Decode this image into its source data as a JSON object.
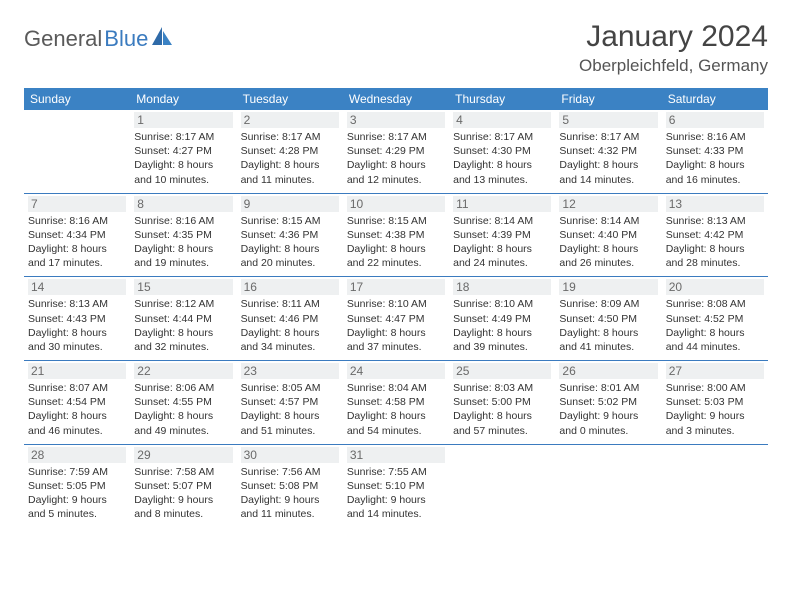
{
  "logo": {
    "text1": "General",
    "text2": "Blue"
  },
  "title": "January 2024",
  "location": "Oberpleichfeld, Germany",
  "style": {
    "header_bg": "#3b82c4",
    "header_fg": "#ffffff",
    "daynum_bg": "#eef0f1",
    "daynum_fg": "#6a6a6a",
    "border_color": "#3b7bbf",
    "text_color": "#333333",
    "page_bg": "#ffffff",
    "logo_gray": "#5a5a5a",
    "logo_blue": "#3b7bbf",
    "title_fontsize": 30,
    "location_fontsize": 17,
    "dayhead_fontsize": 12,
    "info_fontsize": 10.5
  },
  "day_names": [
    "Sunday",
    "Monday",
    "Tuesday",
    "Wednesday",
    "Thursday",
    "Friday",
    "Saturday"
  ],
  "weeks": [
    [
      null,
      {
        "n": "1",
        "sr": "Sunrise: 8:17 AM",
        "ss": "Sunset: 4:27 PM",
        "dl": "Daylight: 8 hours and 10 minutes."
      },
      {
        "n": "2",
        "sr": "Sunrise: 8:17 AM",
        "ss": "Sunset: 4:28 PM",
        "dl": "Daylight: 8 hours and 11 minutes."
      },
      {
        "n": "3",
        "sr": "Sunrise: 8:17 AM",
        "ss": "Sunset: 4:29 PM",
        "dl": "Daylight: 8 hours and 12 minutes."
      },
      {
        "n": "4",
        "sr": "Sunrise: 8:17 AM",
        "ss": "Sunset: 4:30 PM",
        "dl": "Daylight: 8 hours and 13 minutes."
      },
      {
        "n": "5",
        "sr": "Sunrise: 8:17 AM",
        "ss": "Sunset: 4:32 PM",
        "dl": "Daylight: 8 hours and 14 minutes."
      },
      {
        "n": "6",
        "sr": "Sunrise: 8:16 AM",
        "ss": "Sunset: 4:33 PM",
        "dl": "Daylight: 8 hours and 16 minutes."
      }
    ],
    [
      {
        "n": "7",
        "sr": "Sunrise: 8:16 AM",
        "ss": "Sunset: 4:34 PM",
        "dl": "Daylight: 8 hours and 17 minutes."
      },
      {
        "n": "8",
        "sr": "Sunrise: 8:16 AM",
        "ss": "Sunset: 4:35 PM",
        "dl": "Daylight: 8 hours and 19 minutes."
      },
      {
        "n": "9",
        "sr": "Sunrise: 8:15 AM",
        "ss": "Sunset: 4:36 PM",
        "dl": "Daylight: 8 hours and 20 minutes."
      },
      {
        "n": "10",
        "sr": "Sunrise: 8:15 AM",
        "ss": "Sunset: 4:38 PM",
        "dl": "Daylight: 8 hours and 22 minutes."
      },
      {
        "n": "11",
        "sr": "Sunrise: 8:14 AM",
        "ss": "Sunset: 4:39 PM",
        "dl": "Daylight: 8 hours and 24 minutes."
      },
      {
        "n": "12",
        "sr": "Sunrise: 8:14 AM",
        "ss": "Sunset: 4:40 PM",
        "dl": "Daylight: 8 hours and 26 minutes."
      },
      {
        "n": "13",
        "sr": "Sunrise: 8:13 AM",
        "ss": "Sunset: 4:42 PM",
        "dl": "Daylight: 8 hours and 28 minutes."
      }
    ],
    [
      {
        "n": "14",
        "sr": "Sunrise: 8:13 AM",
        "ss": "Sunset: 4:43 PM",
        "dl": "Daylight: 8 hours and 30 minutes."
      },
      {
        "n": "15",
        "sr": "Sunrise: 8:12 AM",
        "ss": "Sunset: 4:44 PM",
        "dl": "Daylight: 8 hours and 32 minutes."
      },
      {
        "n": "16",
        "sr": "Sunrise: 8:11 AM",
        "ss": "Sunset: 4:46 PM",
        "dl": "Daylight: 8 hours and 34 minutes."
      },
      {
        "n": "17",
        "sr": "Sunrise: 8:10 AM",
        "ss": "Sunset: 4:47 PM",
        "dl": "Daylight: 8 hours and 37 minutes."
      },
      {
        "n": "18",
        "sr": "Sunrise: 8:10 AM",
        "ss": "Sunset: 4:49 PM",
        "dl": "Daylight: 8 hours and 39 minutes."
      },
      {
        "n": "19",
        "sr": "Sunrise: 8:09 AM",
        "ss": "Sunset: 4:50 PM",
        "dl": "Daylight: 8 hours and 41 minutes."
      },
      {
        "n": "20",
        "sr": "Sunrise: 8:08 AM",
        "ss": "Sunset: 4:52 PM",
        "dl": "Daylight: 8 hours and 44 minutes."
      }
    ],
    [
      {
        "n": "21",
        "sr": "Sunrise: 8:07 AM",
        "ss": "Sunset: 4:54 PM",
        "dl": "Daylight: 8 hours and 46 minutes."
      },
      {
        "n": "22",
        "sr": "Sunrise: 8:06 AM",
        "ss": "Sunset: 4:55 PM",
        "dl": "Daylight: 8 hours and 49 minutes."
      },
      {
        "n": "23",
        "sr": "Sunrise: 8:05 AM",
        "ss": "Sunset: 4:57 PM",
        "dl": "Daylight: 8 hours and 51 minutes."
      },
      {
        "n": "24",
        "sr": "Sunrise: 8:04 AM",
        "ss": "Sunset: 4:58 PM",
        "dl": "Daylight: 8 hours and 54 minutes."
      },
      {
        "n": "25",
        "sr": "Sunrise: 8:03 AM",
        "ss": "Sunset: 5:00 PM",
        "dl": "Daylight: 8 hours and 57 minutes."
      },
      {
        "n": "26",
        "sr": "Sunrise: 8:01 AM",
        "ss": "Sunset: 5:02 PM",
        "dl": "Daylight: 9 hours and 0 minutes."
      },
      {
        "n": "27",
        "sr": "Sunrise: 8:00 AM",
        "ss": "Sunset: 5:03 PM",
        "dl": "Daylight: 9 hours and 3 minutes."
      }
    ],
    [
      {
        "n": "28",
        "sr": "Sunrise: 7:59 AM",
        "ss": "Sunset: 5:05 PM",
        "dl": "Daylight: 9 hours and 5 minutes."
      },
      {
        "n": "29",
        "sr": "Sunrise: 7:58 AM",
        "ss": "Sunset: 5:07 PM",
        "dl": "Daylight: 9 hours and 8 minutes."
      },
      {
        "n": "30",
        "sr": "Sunrise: 7:56 AM",
        "ss": "Sunset: 5:08 PM",
        "dl": "Daylight: 9 hours and 11 minutes."
      },
      {
        "n": "31",
        "sr": "Sunrise: 7:55 AM",
        "ss": "Sunset: 5:10 PM",
        "dl": "Daylight: 9 hours and 14 minutes."
      },
      null,
      null,
      null
    ]
  ]
}
